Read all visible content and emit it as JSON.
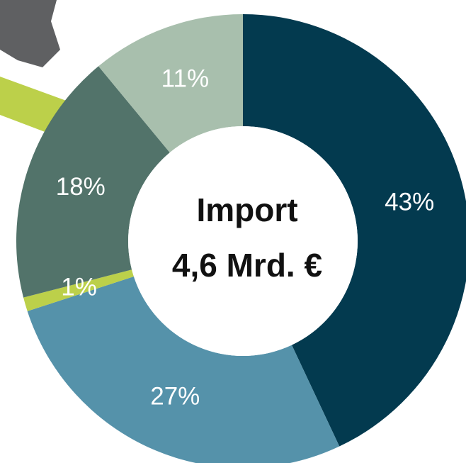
{
  "chart_data": {
    "type": "donut",
    "center_text": [
      "Import",
      "4,6 Mrd. €"
    ],
    "categories": [
      null,
      null,
      null,
      null,
      null
    ],
    "values": [
      43,
      27,
      1,
      18,
      11
    ],
    "value_labels": [
      "43%",
      "27%",
      "1%",
      "18%",
      "11%"
    ],
    "colors": [
      "#033a4f",
      "#5592aa",
      "#bcd04a",
      "#52736a",
      "#a8bfad"
    ]
  }
}
